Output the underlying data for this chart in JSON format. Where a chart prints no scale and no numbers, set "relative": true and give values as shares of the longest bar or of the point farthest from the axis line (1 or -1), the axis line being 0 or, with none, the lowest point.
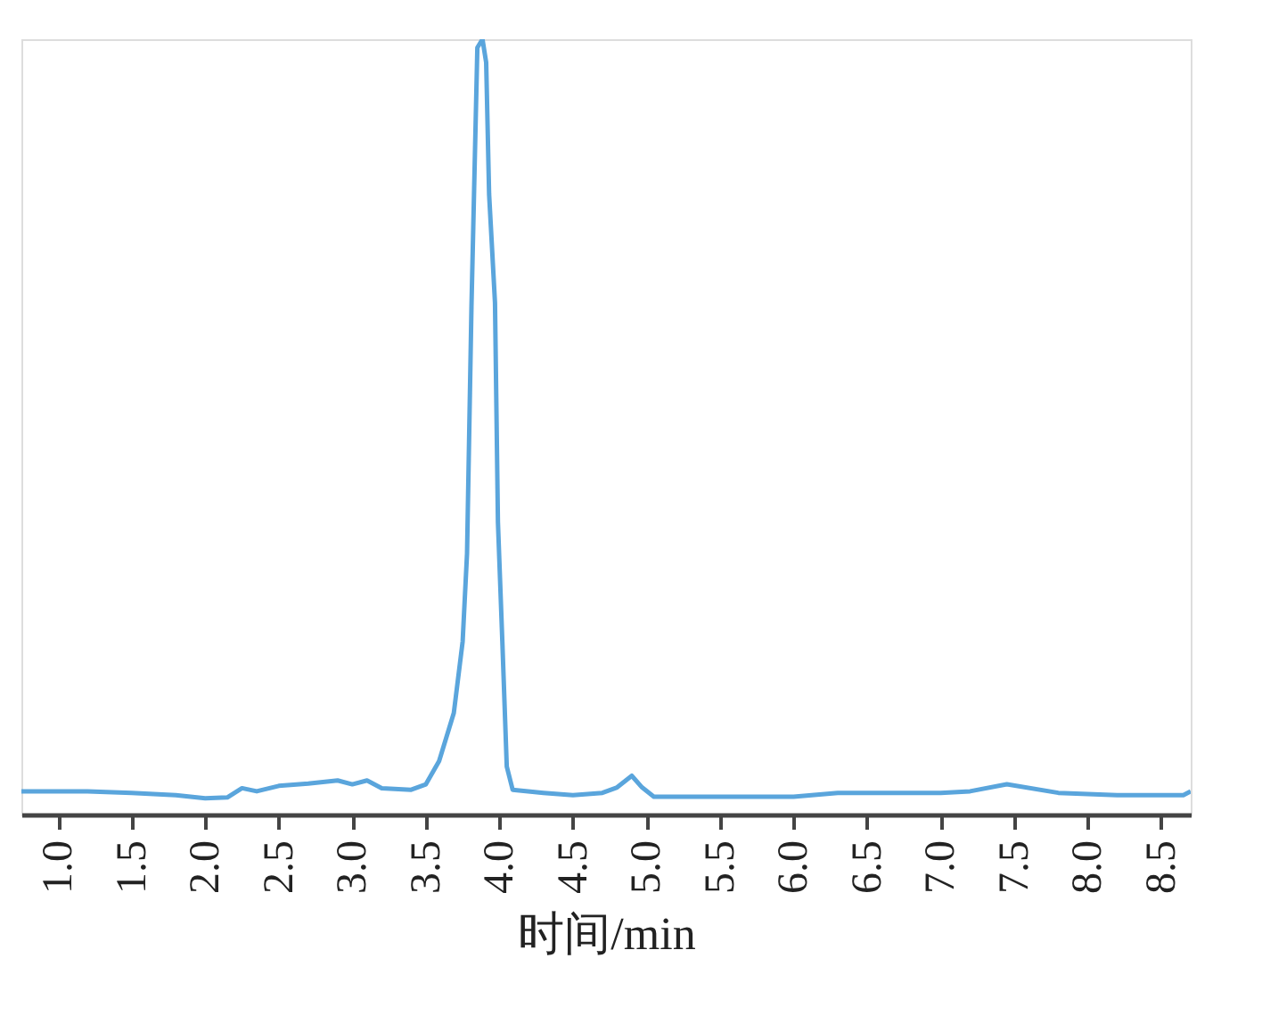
{
  "chart_data": {
    "type": "line",
    "relative": true,
    "xlabel": "时间/min",
    "xlim": [
      0.75,
      8.7
    ],
    "xticks": [
      {
        "value": 1,
        "label": "1.0"
      },
      {
        "value": 1.5,
        "label": "1.5"
      },
      {
        "value": 2,
        "label": "2.0"
      },
      {
        "value": 2.5,
        "label": "2.5"
      },
      {
        "value": 3,
        "label": "3.0"
      },
      {
        "value": 3.5,
        "label": "3.5"
      },
      {
        "value": 4,
        "label": "4.0"
      },
      {
        "value": 4.5,
        "label": "4.5"
      },
      {
        "value": 5,
        "label": "5.0"
      },
      {
        "value": 5.5,
        "label": "5.5"
      },
      {
        "value": 6,
        "label": "6.0"
      },
      {
        "value": 6.5,
        "label": "6.5"
      },
      {
        "value": 7,
        "label": "7.0"
      },
      {
        "value": 7.5,
        "label": "7.5"
      },
      {
        "value": 8,
        "label": "8.0"
      },
      {
        "value": 8.5,
        "label": "8.5"
      }
    ],
    "grid": false,
    "marker": "none",
    "line_style": "solid",
    "series": [
      {
        "color": "#5aa5dc",
        "x": [
          0.75,
          1.2,
          1.5,
          1.8,
          2.0,
          2.15,
          2.25,
          2.35,
          2.5,
          2.7,
          2.9,
          3.0,
          3.1,
          3.2,
          3.4,
          3.5,
          3.59,
          3.69,
          3.75,
          3.78,
          3.81,
          3.85,
          3.885,
          3.91,
          3.93,
          3.97,
          3.99,
          4.02,
          4.05,
          4.09,
          4.3,
          4.5,
          4.7,
          4.8,
          4.9,
          4.97,
          5.05,
          5.5,
          6.0,
          6.3,
          7.0,
          7.2,
          7.45,
          7.8,
          8.2,
          8.65,
          8.7
        ],
        "values": [
          0.03,
          0.03,
          0.028,
          0.025,
          0.021,
          0.022,
          0.034,
          0.03,
          0.037,
          0.04,
          0.044,
          0.039,
          0.044,
          0.034,
          0.032,
          0.039,
          0.069,
          0.131,
          0.223,
          0.337,
          0.655,
          0.989,
          1.0,
          0.97,
          0.8,
          0.66,
          0.377,
          0.223,
          0.062,
          0.032,
          0.028,
          0.025,
          0.028,
          0.035,
          0.05,
          0.035,
          0.023,
          0.023,
          0.023,
          0.028,
          0.028,
          0.03,
          0.039,
          0.028,
          0.025,
          0.025,
          0.03
        ]
      }
    ]
  }
}
